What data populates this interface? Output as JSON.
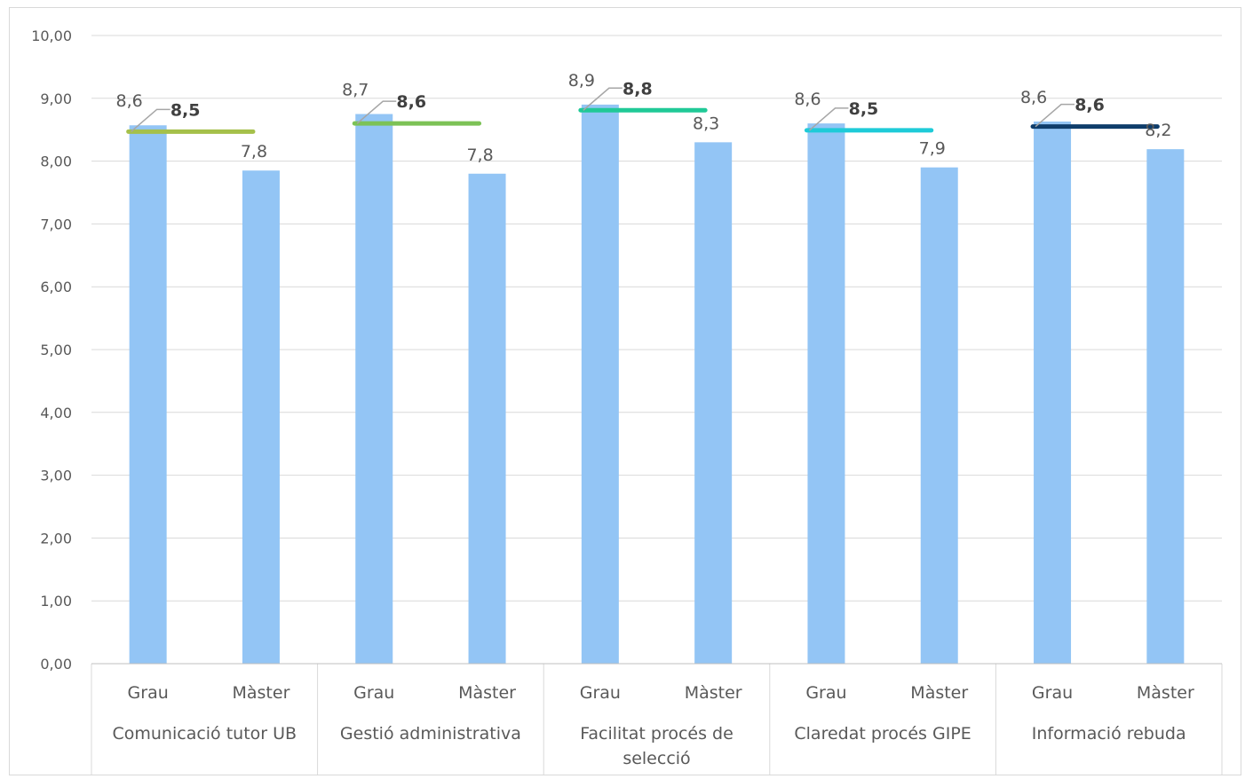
{
  "chart_data": {
    "type": "bar",
    "ylim": [
      0,
      10
    ],
    "y_ticks": [
      "0,00",
      "1,00",
      "2,00",
      "3,00",
      "4,00",
      "5,00",
      "6,00",
      "7,00",
      "8,00",
      "9,00",
      "10,00"
    ],
    "grid": true,
    "bar_color": "#93c5f5",
    "groups": [
      {
        "label": [
          "Comunicació tutor UB"
        ],
        "bars": [
          {
            "label": "Grau",
            "value": 8.57,
            "value_label": "8,6"
          },
          {
            "label": "Màster",
            "value": 7.85,
            "value_label": "7,8"
          }
        ],
        "average": 8.47,
        "average_label": "8,5",
        "average_color": "#a5c04a"
      },
      {
        "label": [
          "Gestió administrativa"
        ],
        "bars": [
          {
            "label": "Grau",
            "value": 8.75,
            "value_label": "8,7"
          },
          {
            "label": "Màster",
            "value": 7.8,
            "value_label": "7,8"
          }
        ],
        "average": 8.6,
        "average_label": "8,6",
        "average_color": "#7cc256"
      },
      {
        "label": [
          "Facilitat procés de",
          "selecció"
        ],
        "bars": [
          {
            "label": "Grau",
            "value": 8.9,
            "value_label": "8,9"
          },
          {
            "label": "Màster",
            "value": 8.3,
            "value_label": "8,3"
          }
        ],
        "average": 8.81,
        "average_label": "8,8",
        "average_color": "#20c997"
      },
      {
        "label": [
          "Claredat procés GIPE"
        ],
        "bars": [
          {
            "label": "Grau",
            "value": 8.6,
            "value_label": "8,6"
          },
          {
            "label": "Màster",
            "value": 7.9,
            "value_label": "7,9"
          }
        ],
        "average": 8.49,
        "average_label": "8,5",
        "average_color": "#1ecbd8"
      },
      {
        "label": [
          "Informació rebuda"
        ],
        "bars": [
          {
            "label": "Grau",
            "value": 8.63,
            "value_label": "8,6"
          },
          {
            "label": "Màster",
            "value": 8.19,
            "value_label": "8,2"
          }
        ],
        "average": 8.55,
        "average_label": "8,6",
        "average_color": "#0f3d6b"
      }
    ]
  }
}
